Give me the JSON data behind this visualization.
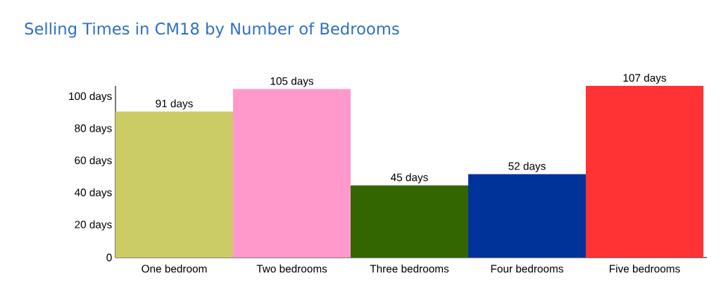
{
  "chart_data": {
    "type": "bar",
    "title": "Selling Times in CM18 by Number of Bedrooms",
    "categories": [
      "One bedroom",
      "Two bedrooms",
      "Three bedrooms",
      "Four bedrooms",
      "Five bedrooms"
    ],
    "values": [
      91,
      105,
      45,
      52,
      107
    ],
    "colors": [
      "#cccc66",
      "#ff99cc",
      "#336600",
      "#003399",
      "#ff3333"
    ],
    "value_labels": [
      "91 days",
      "105 days",
      "45 days",
      "52 days",
      "107 days"
    ],
    "ylim": [
      0,
      107
    ],
    "yticks": [
      0,
      {
        "value": 20,
        "label": "20 days"
      },
      {
        "value": 40,
        "label": "40 days"
      },
      {
        "value": 60,
        "label": "60 days"
      },
      {
        "value": 80,
        "label": "80 days"
      },
      {
        "value": 100,
        "label": "100 days"
      }
    ],
    "grid": false
  }
}
